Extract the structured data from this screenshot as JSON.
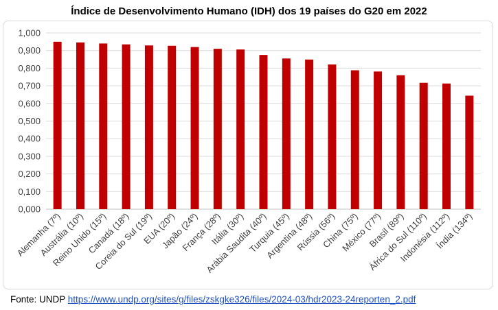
{
  "chart_data": {
    "type": "bar",
    "title": "Índice de Desenvolvimento Humano (IDH) dos 19 países do G20 em 2022",
    "xlabel": "",
    "ylabel": "",
    "ylim": [
      0,
      1.0
    ],
    "yticks": [
      "0,000",
      "0,100",
      "0,200",
      "0,300",
      "0,400",
      "0,500",
      "0,600",
      "0,700",
      "0,800",
      "0,900",
      "1,000"
    ],
    "grid": true,
    "bar_color": "#c00000",
    "categories": [
      "Alemanha (7º)",
      "Austrália (10º)",
      "Reino Unido (15º)",
      "Canadá (18º)",
      "Coreia do Sul (19º)",
      "EUA (20º)",
      "Japão (24º)",
      "França (28º)",
      "Itália (30º)",
      "Arábia Saudita (40º)",
      "Turquia (45º)",
      "Argentina (48º)",
      "Rússia (56º)",
      "China (75º)",
      "México (77º)",
      "Brasil (89º)",
      "África do Sul (110º)",
      "Indonésia (112º)",
      "Índia (134º)"
    ],
    "values": [
      0.95,
      0.946,
      0.94,
      0.935,
      0.929,
      0.927,
      0.92,
      0.91,
      0.906,
      0.875,
      0.855,
      0.849,
      0.821,
      0.788,
      0.781,
      0.76,
      0.717,
      0.713,
      0.644
    ]
  },
  "footer": {
    "source_label": "Fonte: UNDP ",
    "source_url": "https://www.undp.org/sites/g/files/zskgke326/files/2024-03/hdr2023-24reporten_2.pdf"
  }
}
